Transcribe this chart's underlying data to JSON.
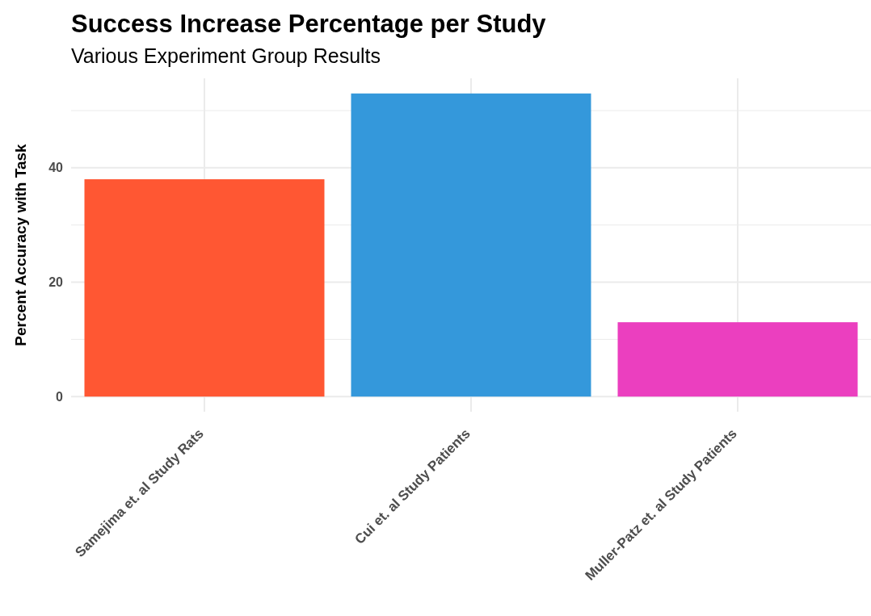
{
  "chart_data": {
    "type": "bar",
    "title": "Success Increase Percentage per Study",
    "subtitle": "Various Experiment Group Results",
    "ylabel": "Percent Accuracy with Task",
    "categories": [
      "Samejima et. al Study Rats",
      "Cui et. al Study Patients",
      "Muller-Patz et. al Study Patients"
    ],
    "values": [
      38,
      53,
      13
    ],
    "colors": [
      "#ff5733",
      "#3498db",
      "#eb3fbf"
    ],
    "ylim": [
      -2.65,
      55.65
    ],
    "yticks": [
      0,
      {
        "value": 10,
        "label": null
      },
      20,
      {
        "value": 30,
        "label": null
      },
      40,
      {
        "value": 50,
        "label": null
      }
    ],
    "grid": true
  }
}
